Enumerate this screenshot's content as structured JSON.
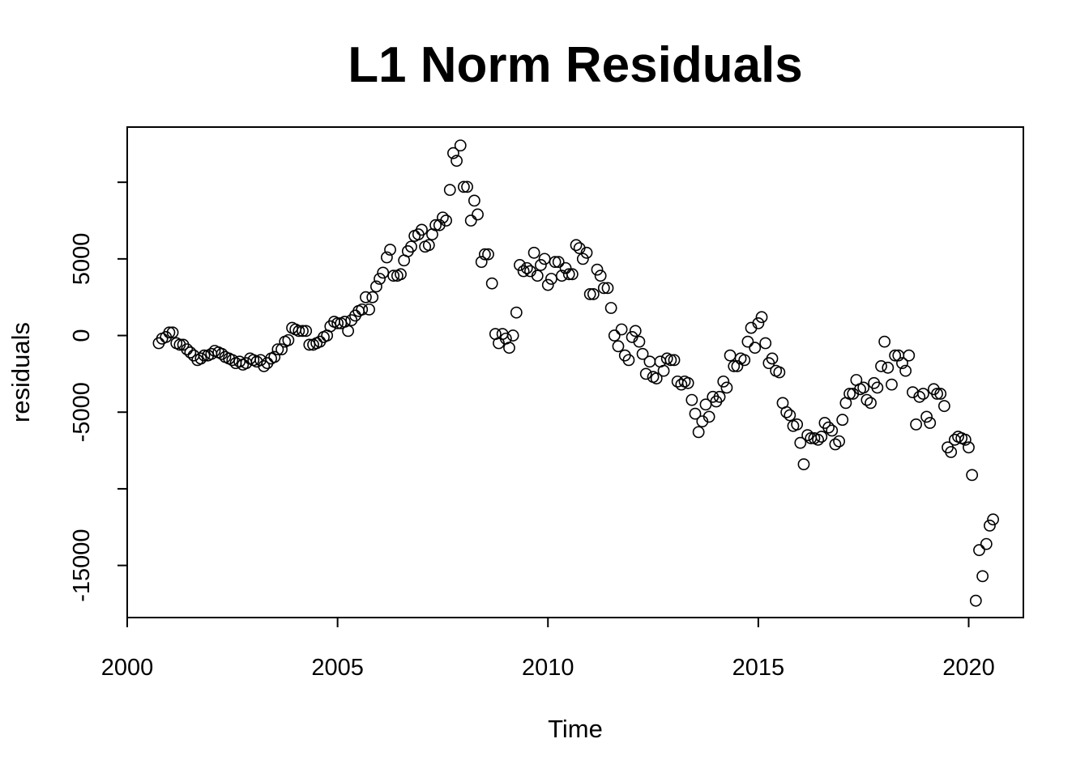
{
  "chart_data": {
    "type": "scatter",
    "title": "L1 Norm Residuals",
    "xlabel": "Time",
    "ylabel": "residuals",
    "xlim": [
      2000,
      2021.3
    ],
    "ylim": [
      -18400,
      13600
    ],
    "x_ticks": [
      2000,
      2005,
      2010,
      2015,
      2020
    ],
    "y_ticks": [
      -15000,
      -10000,
      -5000,
      0,
      5000,
      10000
    ],
    "y_tick_labels": [
      "-15000",
      "",
      "-5000",
      "0",
      "5000",
      ""
    ],
    "grid": false,
    "legend": "none",
    "point_color": "#000000",
    "series": [
      {
        "x": [
          2000.75,
          2000.83,
          2000.92,
          2001.0,
          2001.08,
          2001.17,
          2001.25,
          2001.33,
          2001.42,
          2001.5,
          2001.58,
          2001.67,
          2001.75,
          2001.83,
          2001.92,
          2002.0,
          2002.08,
          2002.17,
          2002.25,
          2002.33,
          2002.42,
          2002.5,
          2002.58,
          2002.67,
          2002.75,
          2002.83,
          2002.92,
          2003.0,
          2003.08,
          2003.17,
          2003.25,
          2003.33,
          2003.42,
          2003.5,
          2003.58,
          2003.67,
          2003.75,
          2003.83,
          2003.92,
          2004.0,
          2004.08,
          2004.17,
          2004.25,
          2004.33,
          2004.42,
          2004.5,
          2004.58,
          2004.67,
          2004.75,
          2004.83,
          2004.92,
          2005.0,
          2005.08,
          2005.17,
          2005.25,
          2005.33,
          2005.42,
          2005.5,
          2005.58,
          2005.67,
          2005.75,
          2005.83,
          2005.92,
          2006.0,
          2006.08,
          2006.17,
          2006.25,
          2006.33,
          2006.42,
          2006.5,
          2006.58,
          2006.67,
          2006.75,
          2006.83,
          2006.92,
          2007.0,
          2007.08,
          2007.17,
          2007.25,
          2007.33,
          2007.42,
          2007.5,
          2007.58,
          2007.67,
          2007.75,
          2007.83,
          2007.92,
          2008.0,
          2008.08,
          2008.17,
          2008.25,
          2008.33,
          2008.42,
          2008.5,
          2008.58,
          2008.67,
          2008.75,
          2008.83,
          2008.92,
          2009.0,
          2009.08,
          2009.17,
          2009.25,
          2009.33,
          2009.42,
          2009.5,
          2009.58,
          2009.67,
          2009.75,
          2009.83,
          2009.92,
          2010.0,
          2010.08,
          2010.17,
          2010.25,
          2010.33,
          2010.42,
          2010.5,
          2010.58,
          2010.67,
          2010.75,
          2010.83,
          2010.92,
          2011.0,
          2011.08,
          2011.17,
          2011.25,
          2011.33,
          2011.42,
          2011.5,
          2011.58,
          2011.67,
          2011.75,
          2011.83,
          2011.92,
          2012.0,
          2012.08,
          2012.17,
          2012.25,
          2012.33,
          2012.42,
          2012.5,
          2012.58,
          2012.67,
          2012.75,
          2012.83,
          2012.92,
          2013.0,
          2013.08,
          2013.17,
          2013.25,
          2013.33,
          2013.42,
          2013.5,
          2013.58,
          2013.67,
          2013.75,
          2013.83,
          2013.92,
          2014.0,
          2014.08,
          2014.17,
          2014.25,
          2014.33,
          2014.42,
          2014.5,
          2014.58,
          2014.67,
          2014.75,
          2014.83,
          2014.92,
          2015.0,
          2015.08,
          2015.17,
          2015.25,
          2015.33,
          2015.42,
          2015.5,
          2015.58,
          2015.67,
          2015.75,
          2015.83,
          2015.92,
          2016.0,
          2016.08,
          2016.17,
          2016.25,
          2016.33,
          2016.42,
          2016.5,
          2016.58,
          2016.67,
          2016.75,
          2016.83,
          2016.92,
          2017.0,
          2017.08,
          2017.17,
          2017.25,
          2017.33,
          2017.42,
          2017.5,
          2017.58,
          2017.67,
          2017.75,
          2017.83,
          2017.92,
          2018.0,
          2018.08,
          2018.17,
          2018.25,
          2018.33,
          2018.42,
          2018.5,
          2018.58,
          2018.67,
          2018.75,
          2018.83,
          2018.92,
          2019.0,
          2019.08,
          2019.17,
          2019.25,
          2019.33,
          2019.42,
          2019.5,
          2019.58,
          2019.67,
          2019.75,
          2019.83,
          2019.92,
          2020.0,
          2020.08,
          2020.17,
          2020.25,
          2020.33,
          2020.42,
          2020.5,
          2020.58
        ],
        "y": [
          -500,
          -200,
          -100,
          200,
          200,
          -500,
          -600,
          -600,
          -900,
          -1100,
          -1300,
          -1600,
          -1500,
          -1300,
          -1300,
          -1200,
          -1000,
          -1100,
          -1200,
          -1400,
          -1500,
          -1600,
          -1800,
          -1700,
          -1900,
          -1800,
          -1500,
          -1600,
          -1700,
          -1600,
          -2000,
          -1800,
          -1500,
          -1400,
          -900,
          -900,
          -400,
          -300,
          500,
          400,
          300,
          300,
          300,
          -600,
          -600,
          -500,
          -400,
          -100,
          0,
          600,
          900,
          800,
          800,
          900,
          300,
          1000,
          1300,
          1600,
          1700,
          2500,
          1700,
          2500,
          3200,
          3700,
          4100,
          5100,
          5600,
          3900,
          3900,
          4000,
          4900,
          5500,
          5800,
          6500,
          6600,
          6900,
          5800,
          5900,
          6600,
          7200,
          7200,
          7700,
          7500,
          9500,
          11900,
          11400,
          12400,
          9700,
          9700,
          7500,
          8800,
          7900,
          4800,
          5300,
          5300,
          3400,
          100,
          -500,
          100,
          -200,
          -800,
          0,
          1500,
          4600,
          4200,
          4400,
          4200,
          5400,
          3900,
          4600,
          5000,
          3300,
          3700,
          4800,
          4800,
          3900,
          4400,
          4000,
          4000,
          5900,
          5700,
          5000,
          5400,
          2700,
          2700,
          4300,
          3900,
          3100,
          3100,
          1800,
          0,
          -700,
          400,
          -1300,
          -1600,
          -100,
          300,
          -400,
          -1200,
          -2500,
          -1700,
          -2700,
          -2800,
          -1700,
          -2300,
          -1500,
          -1600,
          -1600,
          -3000,
          -3200,
          -3000,
          -3100,
          -4200,
          -5100,
          -6300,
          -5600,
          -4500,
          -5300,
          -4000,
          -4300,
          -4000,
          -3000,
          -3400,
          -1300,
          -2000,
          -2000,
          -1500,
          -1600,
          -400,
          500,
          -800,
          800,
          1200,
          -500,
          -1800,
          -1500,
          -2300,
          -2400,
          -4400,
          -5000,
          -5200,
          -5900,
          -5800,
          -7000,
          -8400,
          -6500,
          -6700,
          -6700,
          -6800,
          -6600,
          -5700,
          -6000,
          -6200,
          -7100,
          -6900,
          -5500,
          -4400,
          -3800,
          -3800,
          -2900,
          -3500,
          -3400,
          -4200,
          -4400,
          -3100,
          -3400,
          -2000,
          -400,
          -2100,
          -3200,
          -1300,
          -1300,
          -1800,
          -2300,
          -1300,
          -3700,
          -5800,
          -4000,
          -3800,
          -5300,
          -5700,
          -3500,
          -3800,
          -3800,
          -4600,
          -7300,
          -7600,
          -6800,
          -6600,
          -6700,
          -6800,
          -7300,
          -9100,
          -17300,
          -14000,
          -15700,
          -13600,
          -12400,
          -12000
        ]
      }
    ]
  }
}
